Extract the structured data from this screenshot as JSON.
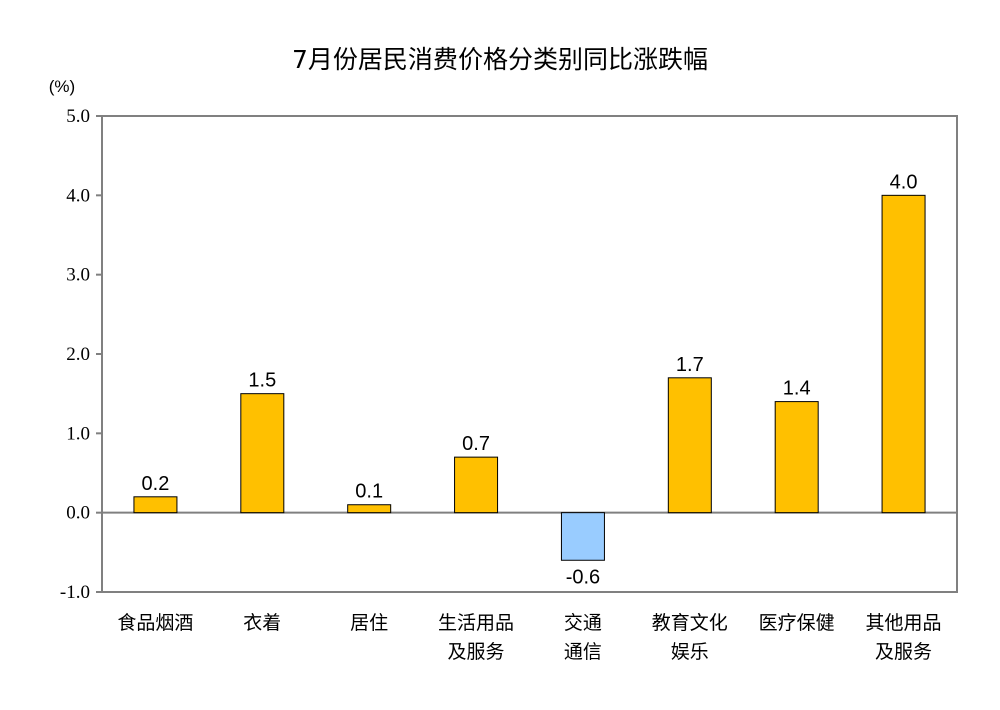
{
  "chart_data": {
    "type": "bar",
    "title": "7月份居民消费价格分类别同比涨跌幅",
    "unit_label": "(%)",
    "categories": [
      [
        "食品烟酒"
      ],
      [
        "衣着"
      ],
      [
        "居住"
      ],
      [
        "生活用品",
        "及服务"
      ],
      [
        "交通",
        "通信"
      ],
      [
        "教育文化",
        "娱乐"
      ],
      [
        "医疗保健"
      ],
      [
        "其他用品",
        "及服务"
      ]
    ],
    "values": [
      0.2,
      1.5,
      0.1,
      0.7,
      -0.6,
      1.7,
      1.4,
      4.0
    ],
    "value_labels": [
      "0.2",
      "1.5",
      "0.1",
      "0.7",
      "-0.6",
      "1.7",
      "1.4",
      "4.0"
    ],
    "ylim": [
      -1.0,
      5.0
    ],
    "yticks": [
      -1.0,
      0.0,
      1.0,
      2.0,
      3.0,
      4.0,
      5.0
    ],
    "ytick_labels": [
      "-1.0",
      "0.0",
      "1.0",
      "2.0",
      "3.0",
      "4.0",
      "5.0"
    ],
    "grid": false,
    "colors": {
      "positive": "#FFC000",
      "negative": "#99CCFF",
      "bar_border": "#000000",
      "axis": "#808080"
    }
  }
}
